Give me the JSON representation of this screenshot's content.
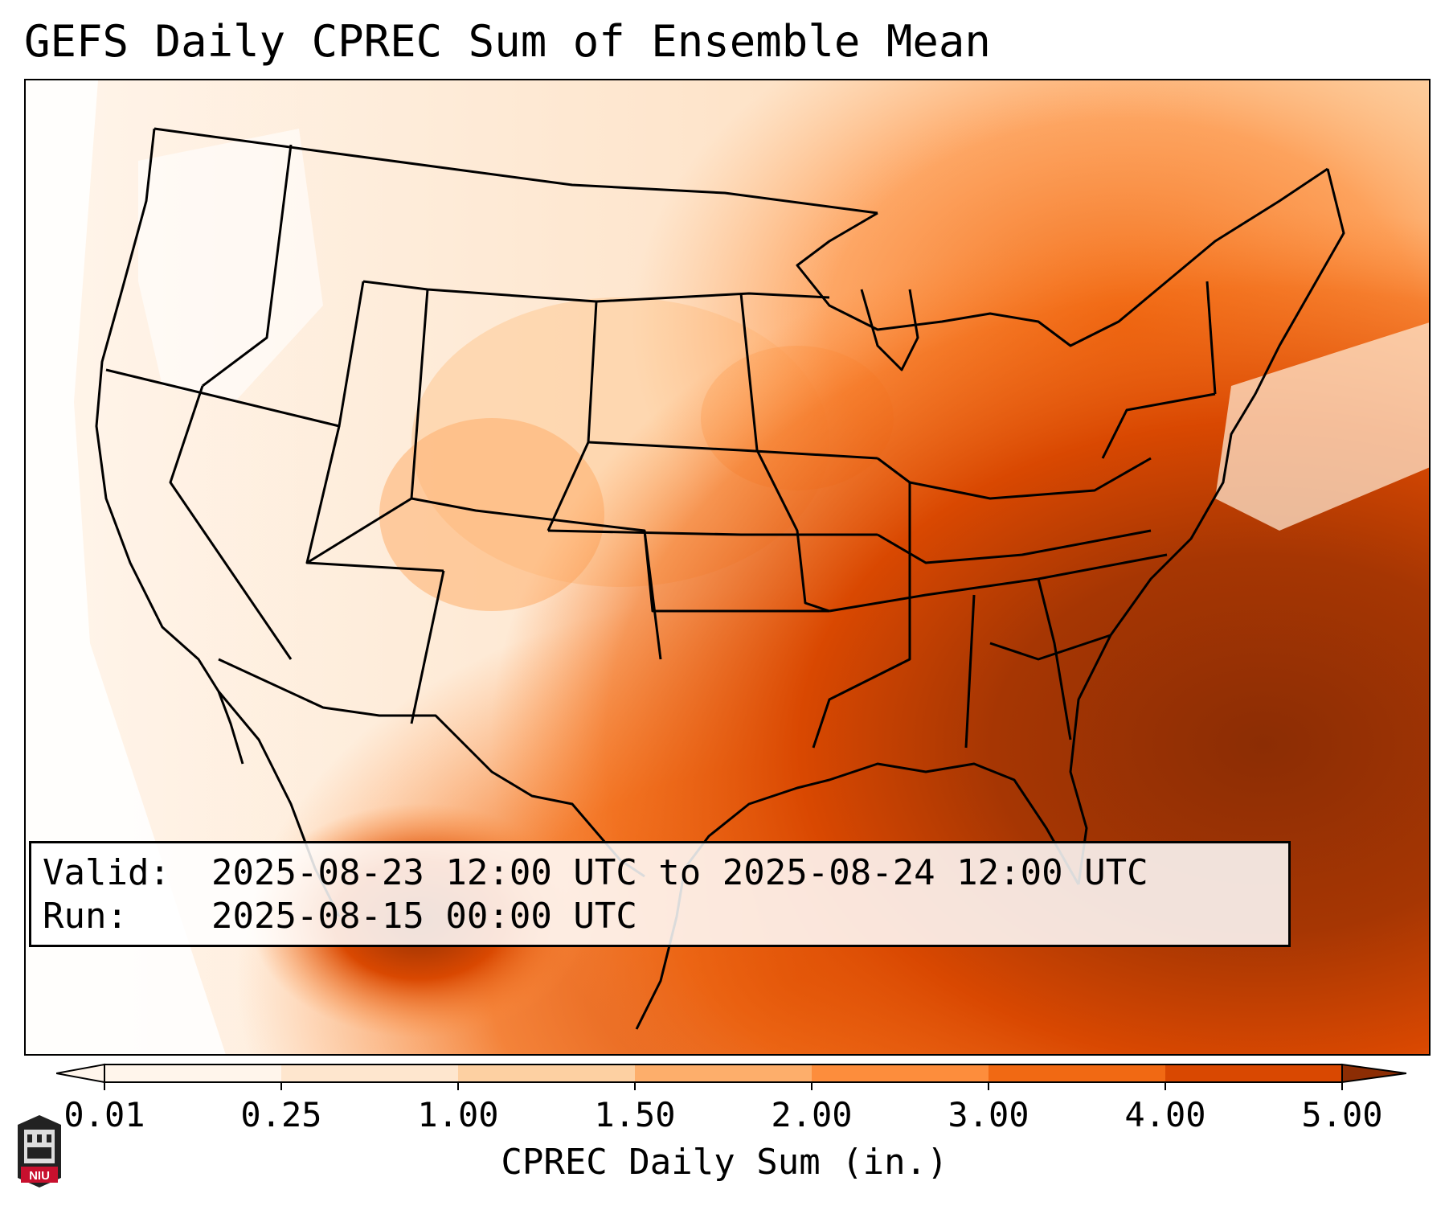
{
  "title": "GEFS Daily CPREC Sum of Ensemble Mean",
  "info": {
    "valid_label": "Valid:",
    "valid_value": "2025-08-23 12:00 UTC to 2025-08-24 12:00 UTC",
    "run_label": "Run:",
    "run_value": "2025-08-15 00:00 UTC"
  },
  "colorbar": {
    "ticks": [
      "0.01",
      "0.25",
      "1.00",
      "1.50",
      "2.00",
      "3.00",
      "4.00",
      "5.00"
    ],
    "colors": [
      "#fff5eb",
      "#fee6ce",
      "#fdd0a2",
      "#fdae6b",
      "#fd8d3c",
      "#f16913",
      "#d94801",
      "#8c2d04"
    ],
    "axis_label": "CPREC Daily Sum (in.)"
  },
  "logo": {
    "text": "NIU",
    "color": "#c8102e"
  },
  "legend_icon": "niu-logo-icon"
}
